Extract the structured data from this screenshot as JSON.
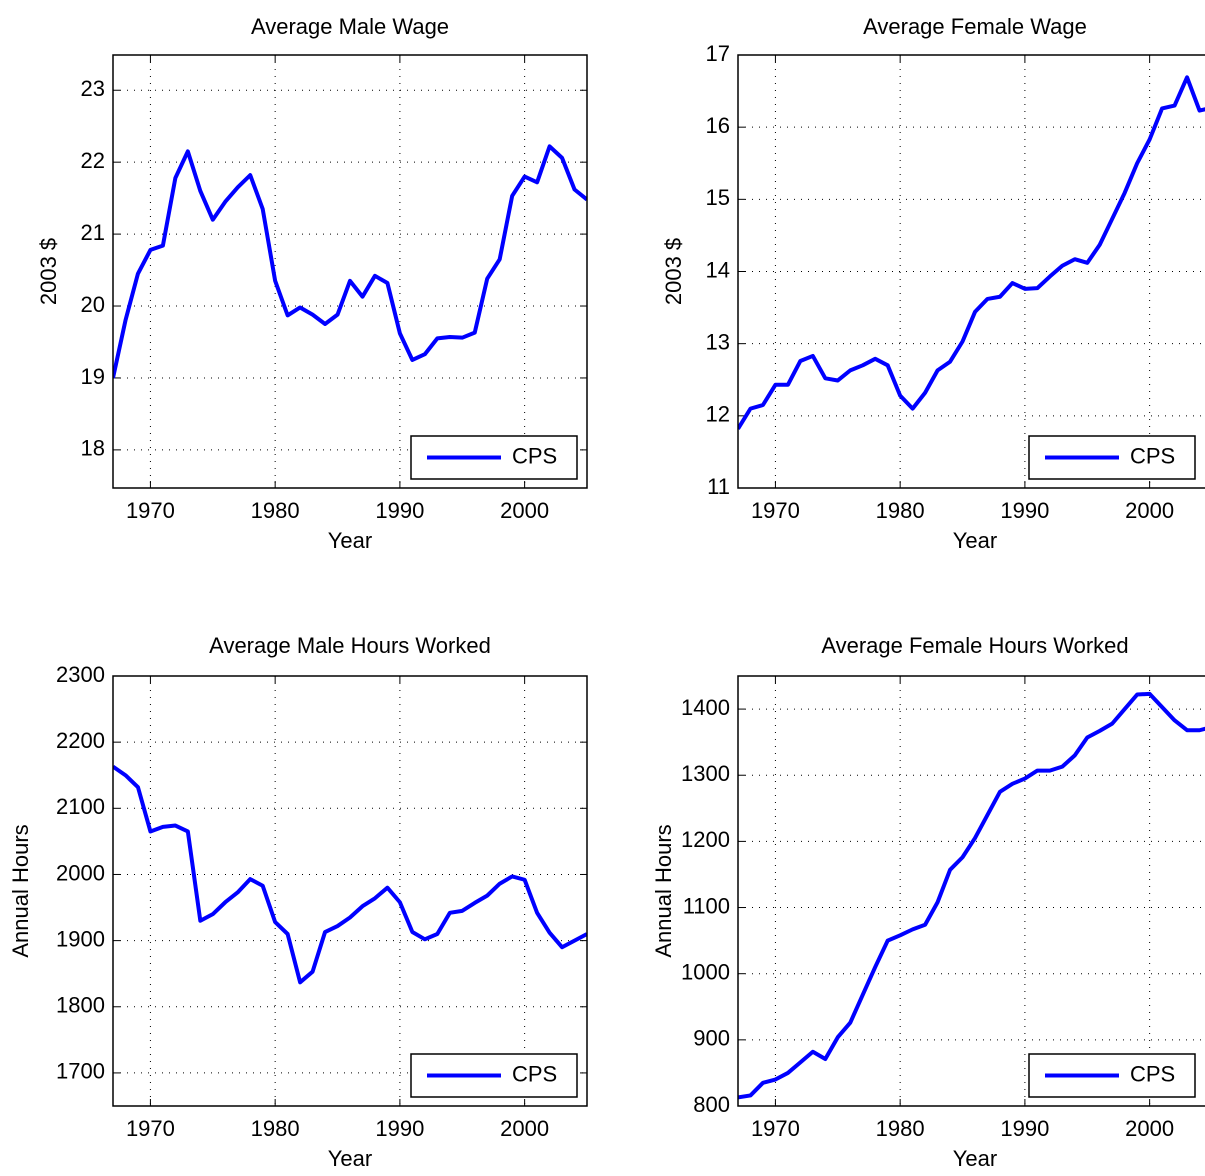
{
  "chart_data": [
    {
      "type": "line",
      "title": "Average Male Wage",
      "xlabel": "Year",
      "ylabel": "2003 $",
      "x": [
        1967,
        1968,
        1969,
        1970,
        1971,
        1972,
        1973,
        1974,
        1975,
        1976,
        1977,
        1978,
        1979,
        1980,
        1981,
        1982,
        1983,
        1984,
        1985,
        1986,
        1987,
        1988,
        1989,
        1990,
        1991,
        1992,
        1993,
        1994,
        1995,
        1996,
        1997,
        1998,
        1999,
        2000,
        2001,
        2002,
        2003,
        2004,
        2005
      ],
      "series": [
        {
          "name": "CPS",
          "color": "#0000ff",
          "values": [
            19.0,
            19.8,
            20.45,
            20.78,
            20.84,
            21.78,
            22.15,
            21.6,
            21.2,
            21.45,
            21.65,
            21.82,
            21.35,
            20.35,
            19.87,
            19.98,
            19.88,
            19.75,
            19.88,
            20.35,
            20.13,
            20.42,
            20.32,
            19.62,
            19.25,
            19.33,
            19.55,
            19.57,
            19.56,
            19.63,
            20.38,
            20.65,
            21.53,
            21.8,
            21.72,
            22.22,
            22.06,
            21.62,
            21.48
          ]
        }
      ],
      "xlim": [
        1967,
        2005
      ],
      "xticks": [
        1970,
        1980,
        1990,
        2000
      ],
      "ylim": [
        17.47,
        23.49
      ],
      "yticks": [
        18,
        19,
        20,
        21,
        22,
        23
      ],
      "grid": true,
      "legend": "lower right"
    },
    {
      "type": "line",
      "title": "Average Female Wage",
      "xlabel": "Year",
      "ylabel": "2003 $",
      "x": [
        1967,
        1968,
        1969,
        1970,
        1971,
        1972,
        1973,
        1974,
        1975,
        1976,
        1977,
        1978,
        1979,
        1980,
        1981,
        1982,
        1983,
        1984,
        1985,
        1986,
        1987,
        1988,
        1989,
        1990,
        1991,
        1992,
        1993,
        1994,
        1995,
        1996,
        1997,
        1998,
        1999,
        2000,
        2001,
        2002,
        2003,
        2004,
        2005
      ],
      "series": [
        {
          "name": "CPS",
          "color": "#0000ff",
          "values": [
            11.82,
            12.1,
            12.15,
            12.43,
            12.43,
            12.76,
            12.83,
            12.52,
            12.49,
            12.63,
            12.7,
            12.79,
            12.7,
            12.28,
            12.1,
            12.32,
            12.63,
            12.75,
            13.03,
            13.44,
            13.62,
            13.65,
            13.84,
            13.76,
            13.77,
            13.93,
            14.08,
            14.17,
            14.12,
            14.37,
            14.73,
            15.09,
            15.5,
            15.83,
            16.26,
            16.3,
            16.69,
            16.23,
            16.27
          ]
        }
      ],
      "xlim": [
        1967,
        2005
      ],
      "xticks": [
        1970,
        1980,
        1990,
        2000
      ],
      "ylim": [
        11,
        17
      ],
      "yticks": [
        11,
        12,
        13,
        14,
        15,
        16,
        17
      ],
      "grid": true,
      "legend": "lower right"
    },
    {
      "type": "line",
      "title": "Average Male Hours Worked",
      "xlabel": "Year",
      "ylabel": "Annual Hours",
      "x": [
        1967,
        1968,
        1969,
        1970,
        1971,
        1972,
        1973,
        1974,
        1975,
        1976,
        1977,
        1978,
        1979,
        1980,
        1981,
        1982,
        1983,
        1984,
        1985,
        1986,
        1987,
        1988,
        1989,
        1990,
        1991,
        1992,
        1993,
        1994,
        1995,
        1996,
        1997,
        1998,
        1999,
        2000,
        2001,
        2002,
        2003,
        2004,
        2005
      ],
      "series": [
        {
          "name": "CPS",
          "color": "#0000ff",
          "values": [
            2163,
            2150,
            2132,
            2065,
            2072,
            2074,
            2065,
            1930,
            1940,
            1958,
            1973,
            1993,
            1983,
            1928,
            1910,
            1837,
            1853,
            1913,
            1922,
            1935,
            1952,
            1964,
            1980,
            1958,
            1913,
            1902,
            1910,
            1942,
            1945,
            1957,
            1968,
            1986,
            1997,
            1992,
            1942,
            1912,
            1890,
            1900,
            1910
          ]
        }
      ],
      "xlim": [
        1967,
        2005
      ],
      "xticks": [
        1970,
        1980,
        1990,
        2000
      ],
      "ylim": [
        1650,
        2300
      ],
      "yticks": [
        1700,
        1800,
        1900,
        2000,
        2100,
        2200,
        2300
      ],
      "grid": true,
      "legend": "lower right"
    },
    {
      "type": "line",
      "title": "Average Female Hours Worked",
      "xlabel": "Year",
      "ylabel": "Annual Hours",
      "x": [
        1967,
        1968,
        1969,
        1970,
        1971,
        1972,
        1973,
        1974,
        1975,
        1976,
        1977,
        1978,
        1979,
        1980,
        1981,
        1982,
        1983,
        1984,
        1985,
        1986,
        1987,
        1988,
        1989,
        1990,
        1991,
        1992,
        1993,
        1994,
        1995,
        1996,
        1997,
        1998,
        1999,
        2000,
        2001,
        2002,
        2003,
        2004,
        2005
      ],
      "series": [
        {
          "name": "CPS",
          "color": "#0000ff",
          "values": [
            813,
            816,
            835,
            840,
            850,
            866,
            882,
            871,
            904,
            926,
            968,
            1010,
            1050,
            1058,
            1067,
            1074,
            1108,
            1157,
            1176,
            1205,
            1240,
            1275,
            1287,
            1295,
            1307,
            1307,
            1313,
            1330,
            1357,
            1367,
            1378,
            1400,
            1422,
            1423,
            1403,
            1383,
            1368,
            1368,
            1373
          ]
        }
      ],
      "xlim": [
        1967,
        2005
      ],
      "xticks": [
        1970,
        1980,
        1990,
        2000
      ],
      "ylim": [
        800,
        1450
      ],
      "yticks": [
        800,
        900,
        1000,
        1100,
        1200,
        1300,
        1400
      ],
      "grid": true,
      "legend": "lower right"
    }
  ]
}
